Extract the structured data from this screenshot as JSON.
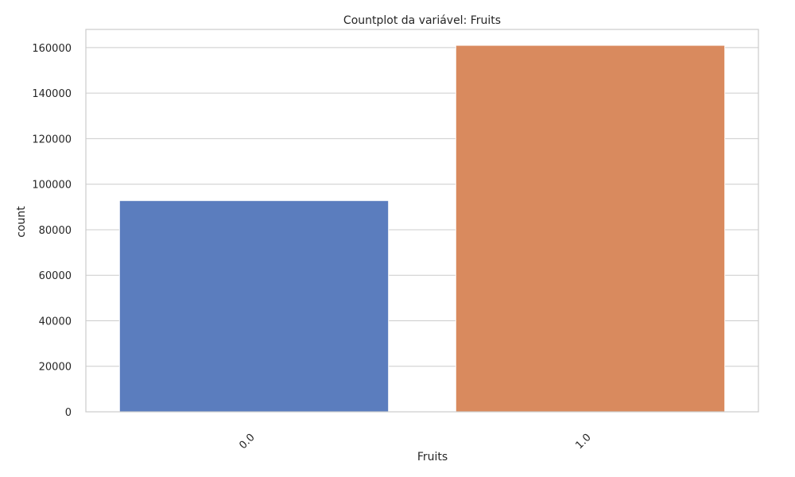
{
  "chart_data": {
    "type": "bar",
    "title": "Countplot da variável: Fruits",
    "xlabel": "Fruits",
    "ylabel": "count",
    "categories": [
      "0.0",
      "1.0"
    ],
    "values": [
      92800,
      161000
    ],
    "ylim": [
      0,
      168000
    ],
    "yticks": [
      0,
      20000,
      40000,
      60000,
      80000,
      100000,
      120000,
      140000,
      160000
    ],
    "colors": [
      "#5b7dbe",
      "#d98a5e"
    ],
    "grid": true,
    "xtick_rotation": "45deg"
  }
}
